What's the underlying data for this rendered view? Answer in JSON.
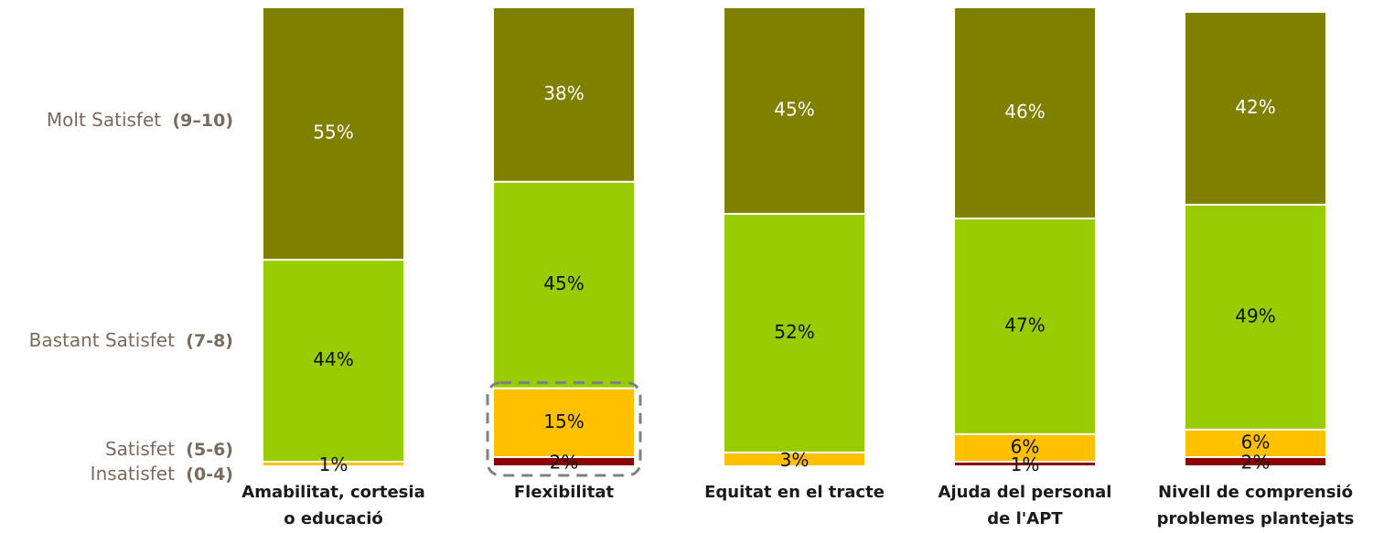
{
  "chart_data": {
    "type": "bar",
    "stacked": true,
    "percent": true,
    "categories": [
      [
        "Amabilitat, cortesia",
        "o educació"
      ],
      [
        "Flexibilitat"
      ],
      [
        "Equitat en el tracte"
      ],
      [
        "Ajuda del personal",
        "de l'APT"
      ],
      [
        "Nivell de comprensió",
        "problemes plantejats"
      ]
    ],
    "series": [
      {
        "key": "insatisfet",
        "name": "Insatisfet",
        "range": "(0-4)",
        "color": "#8b0000",
        "values": [
          0,
          2,
          0,
          1,
          2
        ],
        "labels": [
          "",
          "2%",
          "",
          "1%",
          "2%"
        ],
        "text_color": "#111111"
      },
      {
        "key": "satisfet",
        "name": "Satisfet",
        "range": "(5-6)",
        "color": "#ffc000",
        "values": [
          1,
          15,
          3,
          6,
          6
        ],
        "labels": [
          "1%",
          "15%",
          "3%",
          "6%",
          "6%"
        ],
        "text_color": "#111111"
      },
      {
        "key": "bastant",
        "name": "Bastant Satisfet",
        "range": "(7-8)",
        "color": "#99cc00",
        "values": [
          44,
          45,
          52,
          47,
          49
        ],
        "labels": [
          "44%",
          "45%",
          "52%",
          "47%",
          "49%"
        ],
        "text_color": "#111111"
      },
      {
        "key": "molt",
        "name": "Molt Satisfet",
        "range": "(9–10)",
        "color": "#808000",
        "values": [
          55,
          38,
          45,
          46,
          42
        ],
        "labels": [
          "55%",
          "38%",
          "45%",
          "46%",
          "42%"
        ],
        "text_color": "#ffffff"
      }
    ],
    "legend_placement": "left",
    "highlight": {
      "category_index": 1,
      "series": [
        "satisfet",
        "insatisfet"
      ],
      "style": "dashed-box"
    },
    "title": "",
    "xlabel": "",
    "ylabel": "",
    "ylim": [
      0,
      100
    ],
    "grid": false
  }
}
